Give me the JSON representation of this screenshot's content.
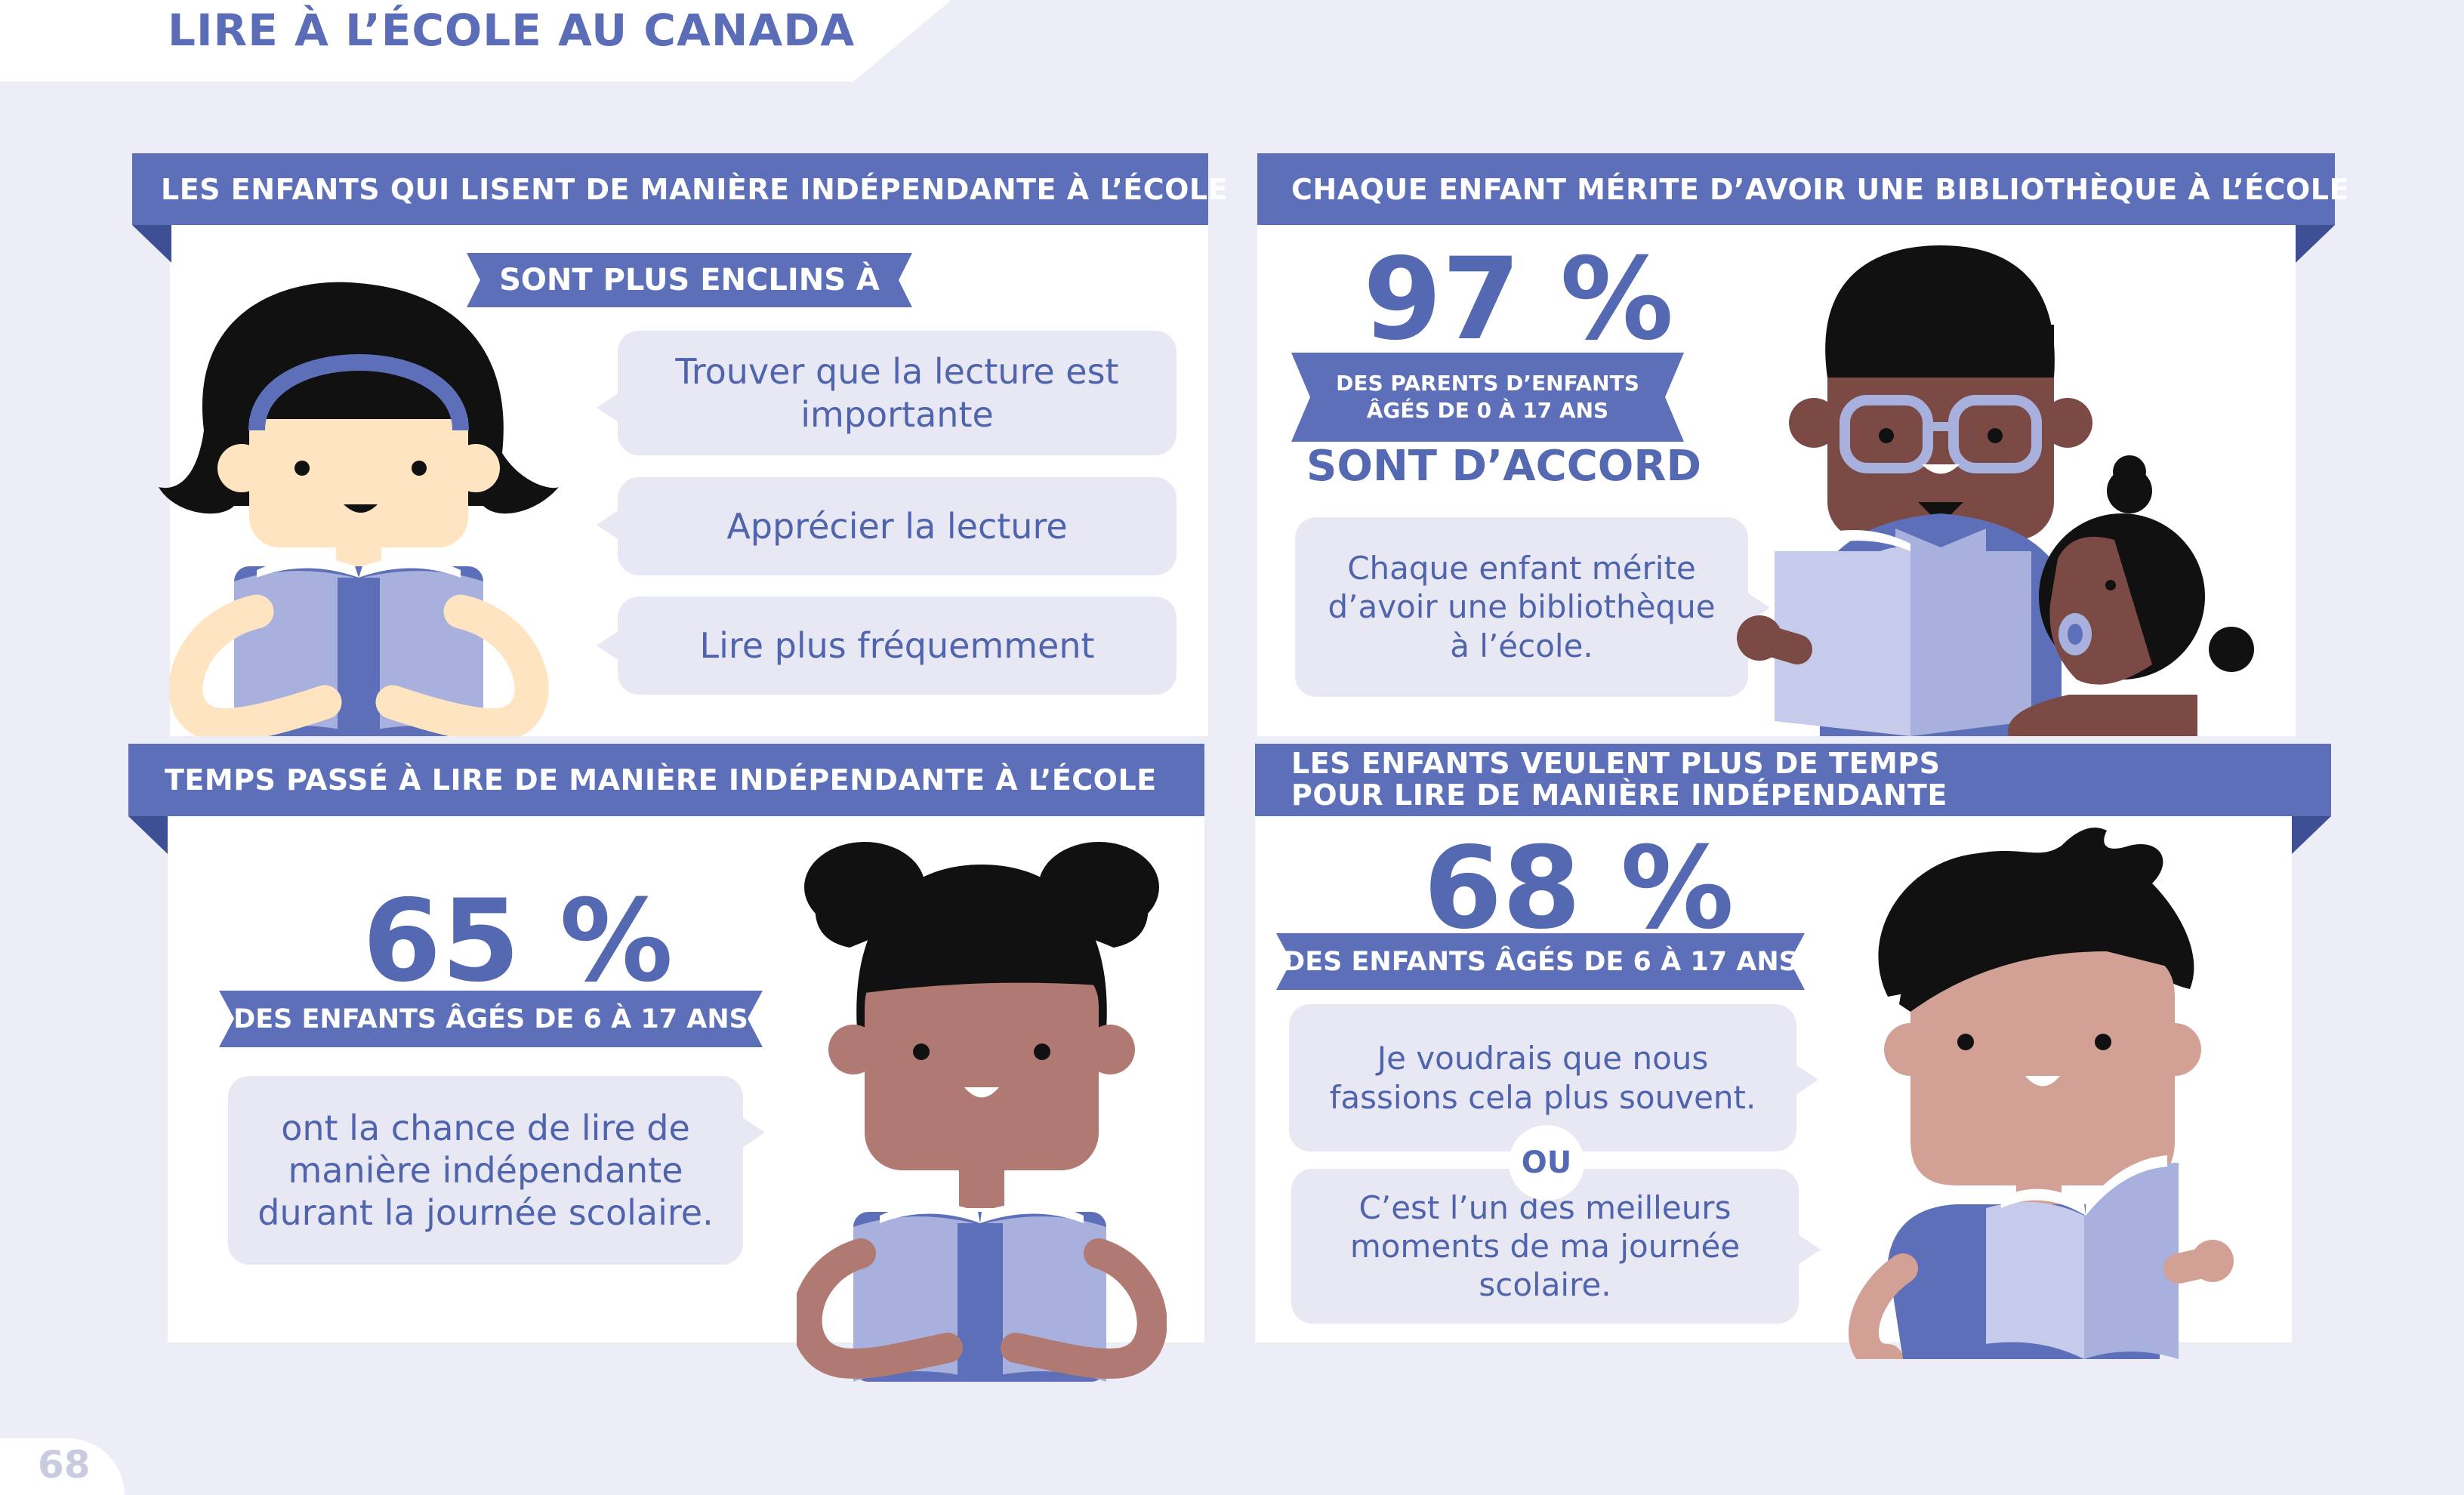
{
  "page": {
    "title": "LIRE À L’ÉCOLE AU CANADA",
    "page_number": "68"
  },
  "colors": {
    "brand_blue": "#5c6fb8",
    "bubble_bg": "#e7e8f3",
    "page_bg": "#ecedf6",
    "book_light": "#a8b0dd"
  },
  "panel1": {
    "heading": "LES ENFANTS QUI LISENT DE MANIÈRE INDÉPENDANTE À L’ÉCOLE",
    "tag": "SONT PLUS ENCLINS À",
    "bubbles": [
      "Trouver que la lecture est importante",
      "Apprécier la lecture",
      "Lire plus fréquemment"
    ]
  },
  "panel2": {
    "heading": "CHAQUE ENFANT MÉRITE D’AVOIR UNE BIBLIOTHÈQUE À L’ÉCOLE",
    "stat": "97 %",
    "tag_line1": "DES PARENTS D’ENFANTS",
    "tag_line2": "ÂGÉS DE 0 À 17 ANS",
    "subtitle": "SONT D’ACCORD",
    "bubble": "Chaque enfant mérite d’avoir une bibliothèque à l’école."
  },
  "panel3": {
    "heading": "TEMPS PASSÉ À LIRE DE MANIÈRE INDÉPENDANTE À L’ÉCOLE",
    "stat": "65 %",
    "tag": "DES ENFANTS ÂGÉS DE 6 À 17 ANS",
    "bubble": "ont la chance de lire de manière indépendante durant la journée scolaire."
  },
  "panel4": {
    "heading_line1": "LES ENFANTS VEULENT PLUS DE TEMPS",
    "heading_line2": "POUR LIRE DE MANIÈRE INDÉPENDANTE",
    "stat": "68 %",
    "tag": "DES ENFANTS ÂGÉS DE 6 À 17 ANS",
    "bubble1": "Je voudrais que nous fassions cela plus souvent.",
    "or_label": "OU",
    "bubble2": "C’est l’un des meilleurs moments de ma journée scolaire."
  }
}
